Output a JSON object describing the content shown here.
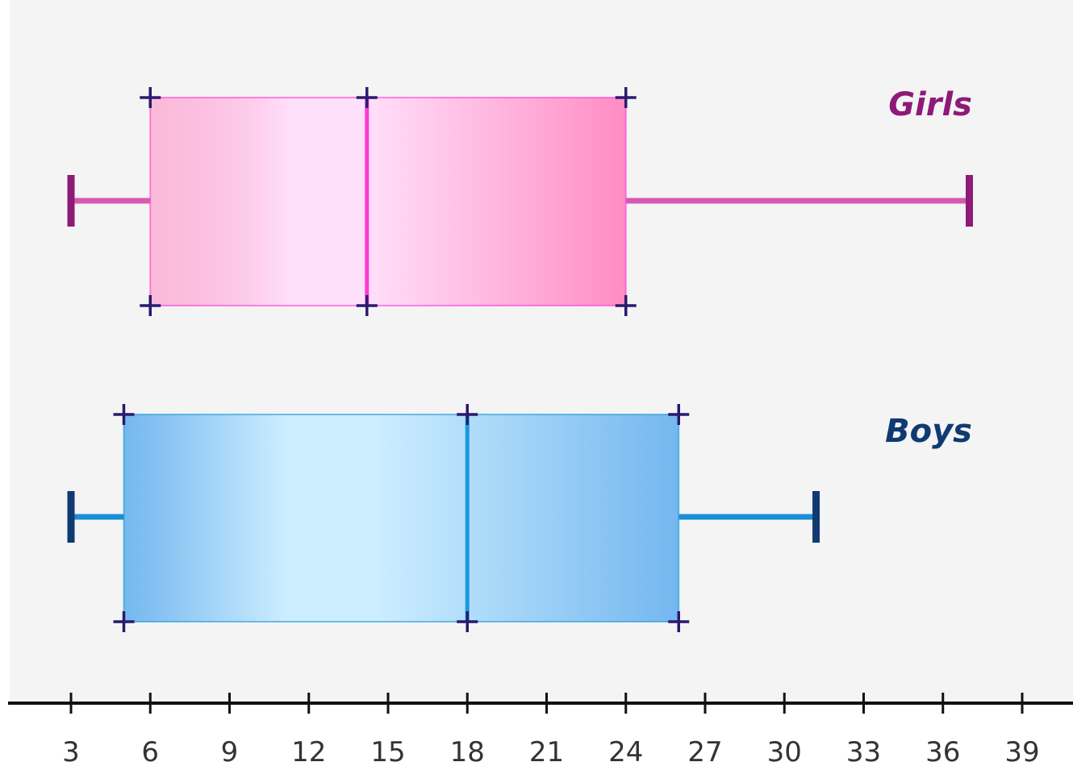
{
  "chart_data": {
    "type": "boxplot",
    "orientation": "horizontal",
    "title": "",
    "xlabel": "",
    "ylabel": "",
    "xlim": [
      3,
      40
    ],
    "x_ticks": [
      3,
      6,
      9,
      12,
      15,
      18,
      21,
      24,
      27,
      30,
      33,
      36,
      39
    ],
    "grid": false,
    "series": [
      {
        "name": "Girls",
        "min": 3,
        "q1": 6,
        "median": 14.2,
        "q3": 24,
        "max": 37,
        "colors": {
          "box_light": "#ffe0fb",
          "box_dark": "#ff8cc4",
          "median": "#ff3ad4",
          "whisker": "#d45ab4",
          "cap": "#8e1a78",
          "label": "#8e1a78"
        }
      },
      {
        "name": "Boys",
        "min": 3,
        "q1": 5,
        "median": 18,
        "q3": 26,
        "max": 31.2,
        "colors": {
          "box_light": "#cdeeff",
          "box_dark": "#74b7ef",
          "median": "#1a9ad8",
          "whisker": "#1a8ed8",
          "cap": "#0f3a72",
          "label": "#0f3a72"
        }
      }
    ],
    "style": {
      "background": "#f4f4f4",
      "axis_color": "#111111",
      "corner_mark_color": "#2a1a6e",
      "tick_label_color": "#333333"
    }
  }
}
